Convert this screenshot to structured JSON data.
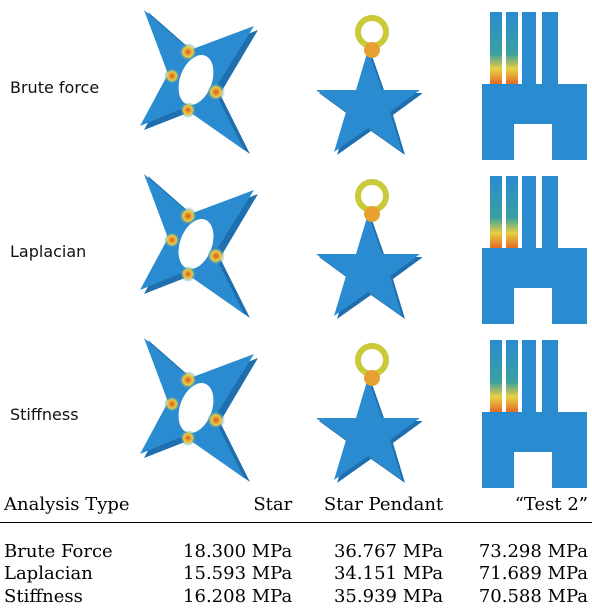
{
  "figure": {
    "row_labels": [
      "Brute force",
      "Laplacian",
      "Stiffness"
    ],
    "stress_colormap": [
      "#2a8bd0",
      "#3aa0a0",
      "#e8d040",
      "#e05020"
    ]
  },
  "results": {
    "headers": [
      "Analysis Type",
      "Star",
      "Star Pendant",
      "“Test 2”"
    ],
    "rows": [
      [
        "Brute Force",
        "18.300 MPa",
        "36.767 MPa",
        "73.298 MPa"
      ],
      [
        "Laplacian",
        "15.593 MPa",
        "34.151 MPa",
        "71.689 MPa"
      ],
      [
        "Stiffness",
        "16.208 MPa",
        "35.939 MPa",
        "70.588 MPa"
      ]
    ]
  }
}
